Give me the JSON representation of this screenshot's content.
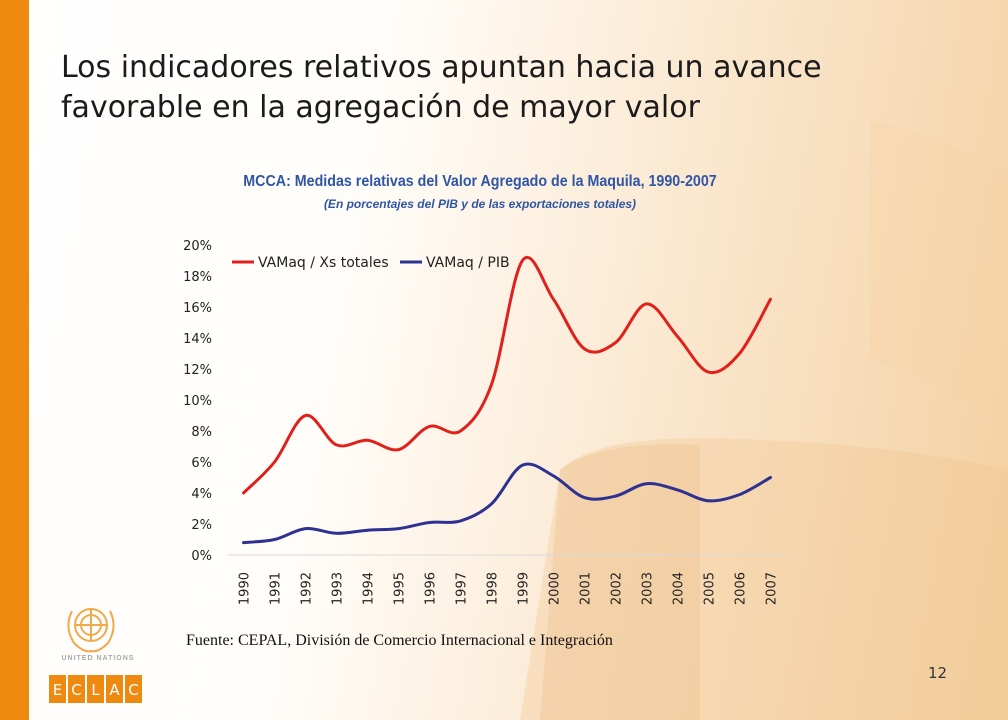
{
  "slide": {
    "title_line1": "Los indicadores relativos apuntan hacia un avance",
    "title_line2": "favorable en la agregación de mayor valor",
    "source": "Fuente: CEPAL, División de Comercio Internacional e Integración",
    "page_number": "12"
  },
  "logos": {
    "un_text": "UNITED NATIONS",
    "eclac_letters": [
      "E",
      "C",
      "L",
      "A",
      "C"
    ]
  },
  "colors": {
    "accent_bar": "#ef8a10",
    "title_blue": "#2f55a4",
    "series_red": "#e0201b",
    "series_blue": "#2e3192"
  },
  "chart_data": {
    "type": "line",
    "title": "MCCA: Medidas relativas del Valor Agregado de la Maquila, 1990-2007",
    "subtitle": "(En porcentajes del PIB y de las exportaciones totales)",
    "categories": [
      "1990",
      "1991",
      "1992",
      "1993",
      "1994",
      "1995",
      "1996",
      "1997",
      "1998",
      "1999",
      "2000",
      "2001",
      "2002",
      "2003",
      "2004",
      "2005",
      "2006",
      "2007"
    ],
    "yticks": [
      "0%",
      "2%",
      "4%",
      "6%",
      "8%",
      "10%",
      "12%",
      "14%",
      "16%",
      "18%",
      "20%"
    ],
    "ylim": [
      0,
      20
    ],
    "legend_position": "top-left",
    "series": [
      {
        "name": "VAMaq / Xs totales",
        "color": "#e0201b",
        "values": [
          4.0,
          6.0,
          9.0,
          7.1,
          7.4,
          6.8,
          8.3,
          8.0,
          11.0,
          19.0,
          16.5,
          13.3,
          13.7,
          16.2,
          14.1,
          11.8,
          13.0,
          16.5
        ]
      },
      {
        "name": "VAMaq / PIB",
        "color": "#2e3192",
        "values": [
          0.8,
          1.0,
          1.7,
          1.4,
          1.6,
          1.7,
          2.1,
          2.2,
          3.3,
          5.8,
          5.1,
          3.7,
          3.8,
          4.6,
          4.2,
          3.5,
          3.9,
          5.0
        ]
      }
    ]
  }
}
